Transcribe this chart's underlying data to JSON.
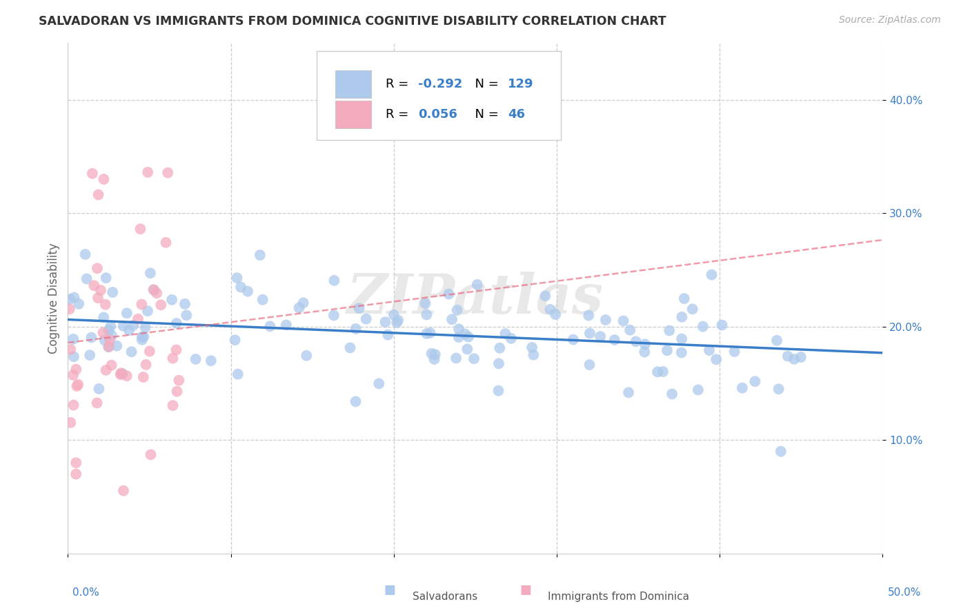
{
  "title": "SALVADORAN VS IMMIGRANTS FROM DOMINICA COGNITIVE DISABILITY CORRELATION CHART",
  "source": "Source: ZipAtlas.com",
  "xlabel_salvadoran": "Salvadorans",
  "xlabel_dominica": "Immigrants from Dominica",
  "ylabel": "Cognitive Disability",
  "r_salvadoran": -0.292,
  "n_salvadoran": 129,
  "r_dominica": 0.056,
  "n_dominica": 46,
  "xlim": [
    0.0,
    0.5
  ],
  "ylim": [
    0.0,
    0.45
  ],
  "xticks": [
    0.0,
    0.1,
    0.2,
    0.3,
    0.4,
    0.5
  ],
  "yticks": [
    0.1,
    0.2,
    0.3,
    0.4
  ],
  "ytick_labels": [
    "10.0%",
    "20.0%",
    "30.0%",
    "40.0%"
  ],
  "color_salvadoran": "#adc9eb",
  "color_dominica": "#f5abbe",
  "line_color_salvadoran": "#3a7dc9",
  "line_color_dominica": "#e8647a",
  "watermark": "ZIPatlas",
  "background_color": "#ffffff",
  "grid_color": "#cccccc",
  "title_color": "#333333",
  "legend_box_color_salvadoran": "#adc9eb",
  "legend_box_color_dominica": "#f5abbe",
  "legend_r_color": "#3a7dc9",
  "label_color": "#3a7dc9"
}
